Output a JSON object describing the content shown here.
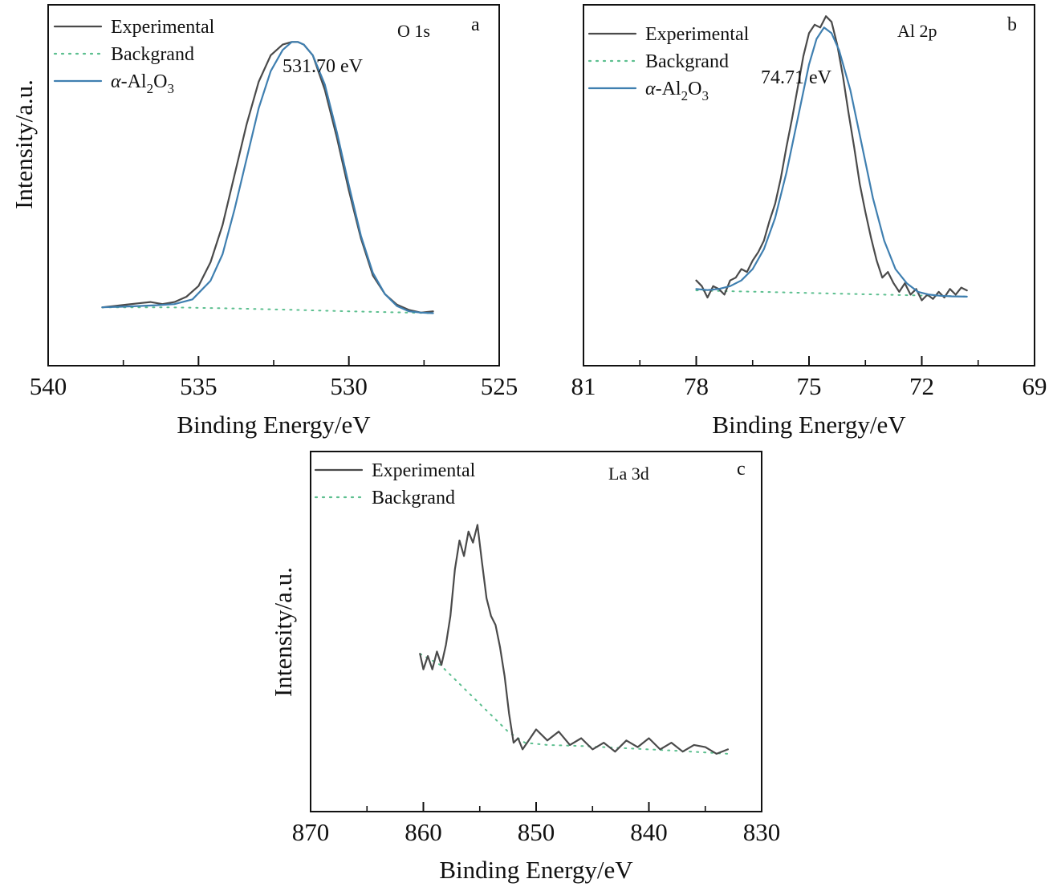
{
  "legend_labels": {
    "experimental": "Experimental",
    "background": "Backgrand",
    "fit_prefix": "α-Al",
    "fit_sub1": "2",
    "fit_mid": "O",
    "fit_sub2": "3"
  },
  "colors": {
    "experimental": "#4a4a4a",
    "background": "#5cbf8f",
    "fit": "#3f7fb0",
    "axis": "#111111"
  },
  "chart_data": [
    {
      "panel_label": "a",
      "element": "O 1s",
      "type": "line",
      "xlabel": "Binding Energy/eV",
      "ylabel": "Intensity/a.u.",
      "xlim": [
        540,
        525
      ],
      "ylim": [
        -0.22,
        1.14
      ],
      "x_ticks": [
        540,
        535,
        530,
        525
      ],
      "x_tick_labels": [
        "540",
        "535",
        "530",
        "525"
      ],
      "peak_label": "531.70 eV",
      "peak_position": 531.7,
      "legend": [
        "Experimental",
        "Backgrand",
        "α-Al2O3"
      ],
      "series": [
        {
          "name": "Experimental",
          "style": "solid",
          "x": [
            538.2,
            537.8,
            537.4,
            537.0,
            536.6,
            536.2,
            535.8,
            535.4,
            535.0,
            534.6,
            534.2,
            533.8,
            533.4,
            533.0,
            532.6,
            532.2,
            531.9,
            531.7,
            531.5,
            531.2,
            530.8,
            530.4,
            530.0,
            529.6,
            529.2,
            528.8,
            528.4,
            528.0,
            527.6,
            527.2
          ],
          "y": [
            0.0,
            0.005,
            0.01,
            0.015,
            0.02,
            0.012,
            0.02,
            0.04,
            0.08,
            0.17,
            0.31,
            0.5,
            0.69,
            0.85,
            0.95,
            0.99,
            1.0,
            1.0,
            0.99,
            0.95,
            0.82,
            0.64,
            0.44,
            0.26,
            0.12,
            0.05,
            0.01,
            -0.01,
            -0.02,
            -0.015
          ]
        },
        {
          "name": "Backgrand",
          "style": "dotted",
          "x": [
            538.2,
            536.0,
            534.0,
            532.0,
            530.0,
            528.0,
            527.2
          ],
          "y": [
            0.0,
            0.0,
            -0.004,
            -0.009,
            -0.015,
            -0.02,
            -0.022
          ]
        },
        {
          "name": "α-Al2O3",
          "style": "solid",
          "x": [
            538.2,
            537.6,
            537.0,
            536.4,
            535.8,
            535.2,
            534.6,
            534.2,
            533.8,
            533.4,
            533.0,
            532.6,
            532.2,
            531.9,
            531.7,
            531.5,
            531.2,
            530.8,
            530.4,
            530.0,
            529.6,
            529.2,
            528.8,
            528.4,
            528.0,
            527.6,
            527.2
          ],
          "y": [
            0.0,
            0.002,
            0.005,
            0.008,
            0.012,
            0.03,
            0.1,
            0.2,
            0.37,
            0.56,
            0.75,
            0.89,
            0.97,
            1.0,
            1.0,
            0.99,
            0.95,
            0.84,
            0.66,
            0.46,
            0.27,
            0.13,
            0.05,
            0.005,
            -0.015,
            -0.02,
            -0.022
          ]
        }
      ]
    },
    {
      "panel_label": "b",
      "element": "Al 2p",
      "type": "line",
      "xlabel": "Binding Energy/eV",
      "ylabel": "",
      "xlim": [
        81,
        69
      ],
      "ylim": [
        -0.27,
        1.0
      ],
      "x_ticks": [
        81,
        78,
        75,
        72,
        69
      ],
      "x_tick_labels": [
        "81",
        "78",
        "75",
        "72",
        "69"
      ],
      "peak_label": "74.71 eV",
      "peak_position": 74.71,
      "legend": [
        "Experimental",
        "Backgrand",
        "α-Al2O3"
      ],
      "series": [
        {
          "name": "Experimental",
          "style": "solid",
          "x": [
            78.0,
            77.85,
            77.7,
            77.55,
            77.4,
            77.25,
            77.1,
            76.95,
            76.8,
            76.65,
            76.5,
            76.35,
            76.2,
            76.05,
            75.9,
            75.75,
            75.6,
            75.45,
            75.3,
            75.15,
            75.0,
            74.85,
            74.7,
            74.55,
            74.4,
            74.25,
            74.1,
            73.95,
            73.8,
            73.65,
            73.5,
            73.35,
            73.2,
            73.05,
            72.9,
            72.75,
            72.6,
            72.45,
            72.3,
            72.15,
            72.0,
            71.85,
            71.7,
            71.55,
            71.4,
            71.25,
            71.1,
            70.95,
            70.8
          ],
          "y": [
            0.03,
            0.01,
            -0.03,
            0.01,
            0.0,
            -0.02,
            0.03,
            0.04,
            0.07,
            0.06,
            0.1,
            0.13,
            0.17,
            0.24,
            0.3,
            0.39,
            0.5,
            0.6,
            0.71,
            0.82,
            0.9,
            0.93,
            0.92,
            0.96,
            0.94,
            0.86,
            0.75,
            0.62,
            0.5,
            0.37,
            0.27,
            0.18,
            0.1,
            0.04,
            0.06,
            0.02,
            -0.01,
            0.02,
            -0.02,
            0.0,
            -0.04,
            -0.02,
            -0.035,
            -0.01,
            -0.03,
            0.0,
            -0.02,
            0.005,
            -0.005
          ]
        },
        {
          "name": "Backgrand",
          "style": "dotted",
          "x": [
            78.0,
            77.0,
            76.0,
            75.0,
            74.0,
            73.0,
            72.0,
            71.0,
            70.8
          ],
          "y": [
            -0.005,
            -0.008,
            -0.011,
            -0.014,
            -0.017,
            -0.02,
            -0.023,
            -0.026,
            -0.027
          ]
        },
        {
          "name": "α-Al2O3",
          "style": "solid",
          "x": [
            78.0,
            77.7,
            77.4,
            77.1,
            76.8,
            76.5,
            76.2,
            75.9,
            75.6,
            75.3,
            75.0,
            74.8,
            74.6,
            74.4,
            74.2,
            73.9,
            73.6,
            73.3,
            73.0,
            72.7,
            72.4,
            72.1,
            71.8,
            71.5,
            71.2,
            70.8
          ],
          "y": [
            0.0,
            -0.004,
            0.0,
            0.01,
            0.03,
            0.07,
            0.14,
            0.25,
            0.41,
            0.6,
            0.79,
            0.88,
            0.92,
            0.9,
            0.84,
            0.7,
            0.51,
            0.32,
            0.17,
            0.07,
            0.02,
            -0.01,
            -0.02,
            -0.024,
            -0.026,
            -0.027
          ]
        }
      ]
    },
    {
      "panel_label": "c",
      "element": "La 3d",
      "type": "line",
      "xlabel": "Binding Energy/eV",
      "ylabel": "Intensity/a.u.",
      "xlim": [
        870,
        830
      ],
      "ylim": [
        -0.26,
        1.36
      ],
      "x_ticks": [
        870,
        860,
        850,
        840,
        830
      ],
      "x_tick_labels": [
        "870",
        "860",
        "850",
        "840",
        "830"
      ],
      "legend": [
        "Experimental",
        "Backgrand"
      ],
      "series": [
        {
          "name": "Experimental",
          "style": "solid",
          "x": [
            860.3,
            860.0,
            859.6,
            859.2,
            858.8,
            858.4,
            858.0,
            857.6,
            857.2,
            856.8,
            856.4,
            856.0,
            855.6,
            855.2,
            854.8,
            854.4,
            854.0,
            853.6,
            853.2,
            852.8,
            852.4,
            852.0,
            851.6,
            851.2,
            850.8,
            850.0,
            849.0,
            848.0,
            847.0,
            846.0,
            845.0,
            844.0,
            843.0,
            842.0,
            841.0,
            840.0,
            839.0,
            838.0,
            837.0,
            836.0,
            835.0,
            834.0,
            833.0
          ],
          "y": [
            0.45,
            0.38,
            0.44,
            0.38,
            0.46,
            0.4,
            0.49,
            0.62,
            0.83,
            0.96,
            0.89,
            1.0,
            0.95,
            1.03,
            0.86,
            0.7,
            0.62,
            0.58,
            0.48,
            0.35,
            0.18,
            0.05,
            0.07,
            0.02,
            0.05,
            0.11,
            0.06,
            0.1,
            0.04,
            0.07,
            0.02,
            0.05,
            0.01,
            0.06,
            0.03,
            0.07,
            0.02,
            0.05,
            0.01,
            0.04,
            0.03,
            0.0,
            0.02
          ]
        },
        {
          "name": "Backgrand",
          "style": "dotted",
          "x": [
            860.3,
            858.5,
            856.5,
            854.5,
            852.5,
            851.0,
            849.0,
            846.0,
            842.0,
            838.0,
            833.0
          ],
          "y": [
            0.45,
            0.4,
            0.3,
            0.2,
            0.1,
            0.05,
            0.04,
            0.035,
            0.025,
            0.015,
            0.0
          ]
        }
      ]
    }
  ]
}
